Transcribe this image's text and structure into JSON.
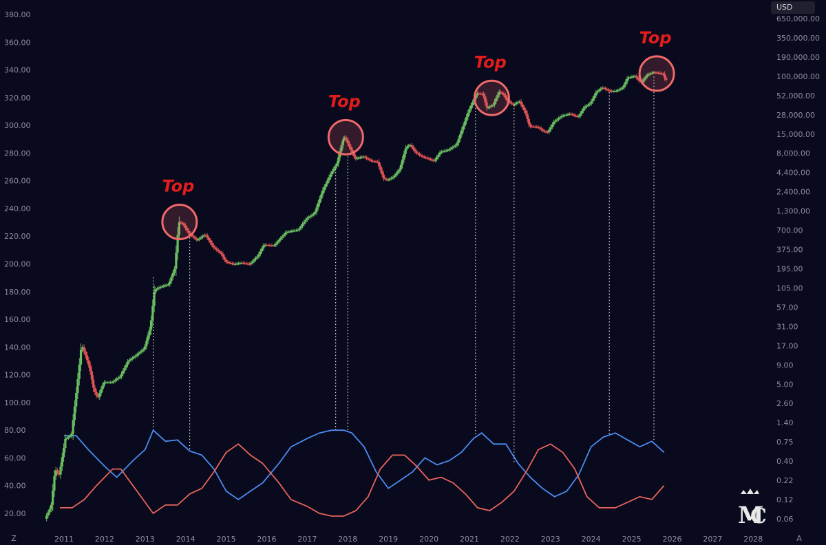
{
  "currency": "USD",
  "corner_left": "Z",
  "corner_right": "A",
  "colors": {
    "background": "#0a0a1e",
    "up_candle": "#6abf61",
    "down_candle": "#e05454",
    "blue_line": "#4a8cf0",
    "red_line": "#e8645a",
    "top_label": "#e31c1c",
    "circle": "#f06a6a",
    "guide": "#e8e8e8"
  },
  "chart_data": {
    "type": "candlestick",
    "left_axis": {
      "ticks": [
        20,
        40,
        60,
        80,
        100,
        120,
        140,
        160,
        180,
        200,
        220,
        240,
        260,
        280,
        300,
        320,
        340,
        360,
        380
      ],
      "labels": [
        "20.00",
        "40.00",
        "60.00",
        "80.00",
        "100.00",
        "120.00",
        "140.00",
        "160.00",
        "180.00",
        "200.00",
        "220.00",
        "240.00",
        "260.00",
        "280.00",
        "300.00",
        "320.00",
        "340.00",
        "360.00",
        "380.00"
      ]
    },
    "right_axis": {
      "scale": "log",
      "labels": [
        "0.06",
        "0.12",
        "0.22",
        "0.40",
        "0.75",
        "1.40",
        "2.60",
        "5.00",
        "9.00",
        "17.00",
        "31.00",
        "57.00",
        "105.00",
        "195.00",
        "375.00",
        "700.00",
        "1,300.00",
        "2,400.00",
        "4,400.00",
        "8,000.00",
        "15,000.00",
        "28,000.00",
        "52,000.00",
        "100,000.00",
        "190,000.00",
        "350,000.00",
        "650,000.00"
      ]
    },
    "x_axis": {
      "years": [
        2011,
        2012,
        2013,
        2014,
        2015,
        2016,
        2017,
        2018,
        2019,
        2020,
        2021,
        2022,
        2023,
        2024,
        2025,
        2026,
        2027,
        2028
      ],
      "labels": [
        "2011",
        "2012",
        "2013",
        "2014",
        "2015",
        "2016",
        "2017",
        "2018",
        "2019",
        "2020",
        "2021",
        "2022",
        "2023",
        "2024",
        "2025",
        "2026",
        "2027",
        "2028"
      ]
    },
    "price_path": [
      [
        2010.55,
        0.06
      ],
      [
        2010.7,
        0.09
      ],
      [
        2010.8,
        0.3
      ],
      [
        2010.9,
        0.25
      ],
      [
        2011.05,
        0.8
      ],
      [
        2011.2,
        0.9
      ],
      [
        2011.35,
        5
      ],
      [
        2011.45,
        17
      ],
      [
        2011.55,
        12
      ],
      [
        2011.65,
        8
      ],
      [
        2011.75,
        4
      ],
      [
        2011.85,
        3
      ],
      [
        2012.0,
        5
      ],
      [
        2012.2,
        5
      ],
      [
        2012.4,
        6
      ],
      [
        2012.6,
        10
      ],
      [
        2012.8,
        12
      ],
      [
        2013.0,
        15
      ],
      [
        2013.15,
        30
      ],
      [
        2013.25,
        100
      ],
      [
        2013.4,
        110
      ],
      [
        2013.6,
        120
      ],
      [
        2013.75,
        200
      ],
      [
        2013.85,
        900
      ],
      [
        2013.95,
        850
      ],
      [
        2014.1,
        620
      ],
      [
        2014.3,
        500
      ],
      [
        2014.5,
        600
      ],
      [
        2014.7,
        400
      ],
      [
        2014.9,
        320
      ],
      [
        2015.0,
        250
      ],
      [
        2015.2,
        230
      ],
      [
        2015.4,
        240
      ],
      [
        2015.6,
        230
      ],
      [
        2015.8,
        300
      ],
      [
        2015.95,
        430
      ],
      [
        2016.2,
        420
      ],
      [
        2016.5,
        650
      ],
      [
        2016.8,
        700
      ],
      [
        2017.0,
        1000
      ],
      [
        2017.2,
        1200
      ],
      [
        2017.4,
        2500
      ],
      [
        2017.6,
        4300
      ],
      [
        2017.75,
        6000
      ],
      [
        2017.9,
        13000
      ],
      [
        2017.95,
        14000
      ],
      [
        2018.05,
        10500
      ],
      [
        2018.2,
        7000
      ],
      [
        2018.4,
        7500
      ],
      [
        2018.6,
        6500
      ],
      [
        2018.75,
        6300
      ],
      [
        2018.9,
        3700
      ],
      [
        2019.0,
        3500
      ],
      [
        2019.15,
        3900
      ],
      [
        2019.3,
        5000
      ],
      [
        2019.45,
        10000
      ],
      [
        2019.55,
        11000
      ],
      [
        2019.7,
        8500
      ],
      [
        2019.85,
        7500
      ],
      [
        2019.95,
        7200
      ],
      [
        2020.15,
        6500
      ],
      [
        2020.3,
        8700
      ],
      [
        2020.5,
        9300
      ],
      [
        2020.7,
        11000
      ],
      [
        2020.85,
        19000
      ],
      [
        2021.0,
        33000
      ],
      [
        2021.2,
        58000
      ],
      [
        2021.35,
        57000
      ],
      [
        2021.45,
        36000
      ],
      [
        2021.6,
        40000
      ],
      [
        2021.75,
        61000
      ],
      [
        2021.85,
        57000
      ],
      [
        2021.95,
        46000
      ],
      [
        2022.1,
        40000
      ],
      [
        2022.25,
        45000
      ],
      [
        2022.4,
        31000
      ],
      [
        2022.5,
        20000
      ],
      [
        2022.7,
        19500
      ],
      [
        2022.85,
        17000
      ],
      [
        2022.95,
        16500
      ],
      [
        2023.1,
        23000
      ],
      [
        2023.3,
        28000
      ],
      [
        2023.5,
        30000
      ],
      [
        2023.7,
        27000
      ],
      [
        2023.85,
        37000
      ],
      [
        2024.0,
        42000
      ],
      [
        2024.15,
        61000
      ],
      [
        2024.3,
        70000
      ],
      [
        2024.5,
        62000
      ],
      [
        2024.65,
        63000
      ],
      [
        2024.8,
        70000
      ],
      [
        2024.92,
        96000
      ],
      [
        2025.1,
        102000
      ],
      [
        2025.25,
        82000
      ],
      [
        2025.4,
        105000
      ],
      [
        2025.55,
        115000
      ],
      [
        2025.7,
        112000
      ],
      [
        2025.8,
        108000
      ],
      [
        2025.85,
        90000
      ]
    ],
    "blue_line": [
      [
        2011.0,
        76
      ],
      [
        2011.3,
        76
      ],
      [
        2011.6,
        66
      ],
      [
        2012.0,
        54
      ],
      [
        2012.3,
        46
      ],
      [
        2012.7,
        58
      ],
      [
        2013.0,
        66
      ],
      [
        2013.2,
        80
      ],
      [
        2013.5,
        72
      ],
      [
        2013.8,
        73
      ],
      [
        2014.1,
        65
      ],
      [
        2014.4,
        62
      ],
      [
        2014.7,
        52
      ],
      [
        2015.0,
        36
      ],
      [
        2015.3,
        30
      ],
      [
        2015.6,
        36
      ],
      [
        2015.9,
        42
      ],
      [
        2016.3,
        56
      ],
      [
        2016.6,
        68
      ],
      [
        2017.0,
        74
      ],
      [
        2017.3,
        78
      ],
      [
        2017.6,
        80
      ],
      [
        2017.9,
        80
      ],
      [
        2018.1,
        78
      ],
      [
        2018.4,
        68
      ],
      [
        2018.7,
        50
      ],
      [
        2019.0,
        38
      ],
      [
        2019.3,
        44
      ],
      [
        2019.6,
        50
      ],
      [
        2019.9,
        60
      ],
      [
        2020.2,
        55
      ],
      [
        2020.5,
        58
      ],
      [
        2020.8,
        64
      ],
      [
        2021.1,
        74
      ],
      [
        2021.3,
        78
      ],
      [
        2021.6,
        70
      ],
      [
        2021.9,
        70
      ],
      [
        2022.2,
        56
      ],
      [
        2022.5,
        46
      ],
      [
        2022.8,
        38
      ],
      [
        2023.1,
        32
      ],
      [
        2023.4,
        36
      ],
      [
        2023.7,
        48
      ],
      [
        2024.0,
        68
      ],
      [
        2024.3,
        75
      ],
      [
        2024.6,
        78
      ],
      [
        2024.9,
        73
      ],
      [
        2025.2,
        68
      ],
      [
        2025.5,
        72
      ],
      [
        2025.8,
        64
      ]
    ],
    "red_line": [
      [
        2010.9,
        24
      ],
      [
        2011.2,
        24
      ],
      [
        2011.5,
        30
      ],
      [
        2011.8,
        40
      ],
      [
        2012.2,
        52
      ],
      [
        2012.4,
        52
      ],
      [
        2012.7,
        40
      ],
      [
        2013.0,
        28
      ],
      [
        2013.2,
        20
      ],
      [
        2013.5,
        26
      ],
      [
        2013.8,
        26
      ],
      [
        2014.1,
        34
      ],
      [
        2014.4,
        38
      ],
      [
        2014.7,
        50
      ],
      [
        2015.0,
        64
      ],
      [
        2015.3,
        70
      ],
      [
        2015.6,
        62
      ],
      [
        2015.9,
        56
      ],
      [
        2016.3,
        42
      ],
      [
        2016.6,
        30
      ],
      [
        2017.0,
        25
      ],
      [
        2017.3,
        20
      ],
      [
        2017.6,
        18
      ],
      [
        2017.9,
        18
      ],
      [
        2018.2,
        22
      ],
      [
        2018.5,
        32
      ],
      [
        2018.8,
        52
      ],
      [
        2019.1,
        62
      ],
      [
        2019.4,
        62
      ],
      [
        2019.7,
        54
      ],
      [
        2020.0,
        44
      ],
      [
        2020.3,
        46
      ],
      [
        2020.6,
        42
      ],
      [
        2020.9,
        34
      ],
      [
        2021.2,
        24
      ],
      [
        2021.5,
        22
      ],
      [
        2021.8,
        28
      ],
      [
        2022.1,
        36
      ],
      [
        2022.4,
        50
      ],
      [
        2022.7,
        66
      ],
      [
        2023.0,
        70
      ],
      [
        2023.3,
        64
      ],
      [
        2023.6,
        52
      ],
      [
        2023.9,
        32
      ],
      [
        2024.2,
        24
      ],
      [
        2024.6,
        24
      ],
      [
        2024.9,
        28
      ],
      [
        2025.2,
        32
      ],
      [
        2025.5,
        30
      ],
      [
        2025.8,
        40
      ]
    ],
    "tops": [
      {
        "label": "Top",
        "year": 2013.85,
        "price": 900
      },
      {
        "label": "Top",
        "year": 2017.95,
        "price": 14000
      },
      {
        "label": "Top",
        "year": 2021.55,
        "price": 50000
      },
      {
        "label": "Top",
        "year": 2025.62,
        "price": 110000
      }
    ],
    "guide_lines": [
      {
        "year": 2013.2,
        "price": 150,
        "indicator": 80
      },
      {
        "year": 2014.1,
        "price": 600,
        "indicator": 65
      },
      {
        "year": 2017.7,
        "price": 5000,
        "indicator": 80
      },
      {
        "year": 2018.0,
        "price": 7500,
        "indicator": 80
      },
      {
        "year": 2021.15,
        "price": 40000,
        "indicator": 76
      },
      {
        "year": 2022.1,
        "price": 40000,
        "indicator": 56
      },
      {
        "year": 2024.45,
        "price": 60000,
        "indicator": 76
      },
      {
        "year": 2025.55,
        "price": 100000,
        "indicator": 72
      }
    ]
  }
}
